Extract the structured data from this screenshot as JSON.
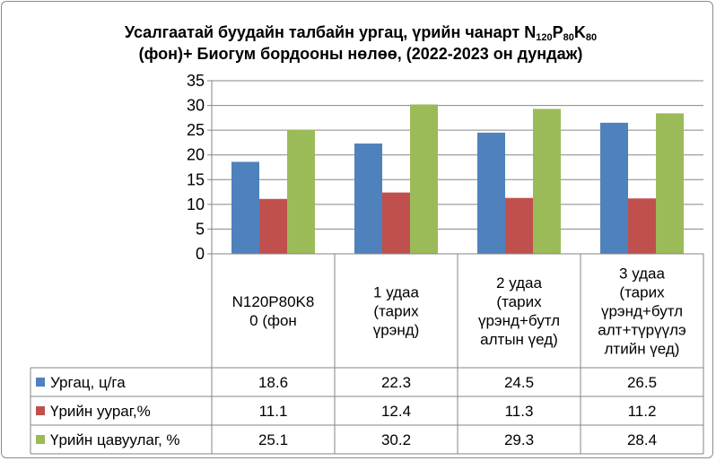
{
  "chart_data": {
    "type": "bar",
    "title": "Усалгаатай буудайн талбайн ургац, үрийн чанарт N120P80K80 (фон)+ Биогум бордооны нөлөө, (2022-2023 он дундаж)",
    "title_parts": {
      "line1_prefix": "Усалгаатай буудайн талбайн ургац, үрийн чанарт N",
      "n_sub": "120",
      "p": "P",
      "p_sub": "80",
      "k": "K",
      "k_sub": "80",
      "line2": "(фон)+ Биогум бордооны нөлөө, (2022-2023 он дундаж)"
    },
    "categories": [
      [
        "N120P80K8",
        "0 (фон"
      ],
      [
        "1 удаа",
        "(тарих",
        "үрэнд)"
      ],
      [
        "2 удаа",
        "(тарих",
        "үрэнд+бутл",
        "алтын үед)"
      ],
      [
        "3 удаа",
        "(тарих",
        "үрэнд+бутл",
        "алт+түрүүлэ",
        "лтийн үед)"
      ]
    ],
    "series": [
      {
        "name": "Ургац, ц/га",
        "values": [
          18.6,
          22.3,
          24.5,
          26.5
        ],
        "color": "#4f81bd"
      },
      {
        "name": "Үрийн уураг,%",
        "values": [
          11.1,
          12.4,
          11.3,
          11.2
        ],
        "color": "#c0504d"
      },
      {
        "name": "Үрийн цавуулаг, %",
        "values": [
          25.1,
          30.2,
          29.3,
          28.4
        ],
        "color": "#9bbb59"
      }
    ],
    "table_values": [
      [
        "18.6",
        "22.3",
        "24.5",
        "26.5"
      ],
      [
        "11.1",
        "12.4",
        "11.3",
        "11.2"
      ],
      [
        "25.1",
        "30.2",
        "29.3",
        "28.4"
      ]
    ],
    "ylim": [
      0,
      35
    ],
    "yticks": [
      "0",
      "5",
      "10",
      "15",
      "20",
      "25",
      "30",
      "35"
    ],
    "grid": true,
    "legend": "data-table"
  }
}
